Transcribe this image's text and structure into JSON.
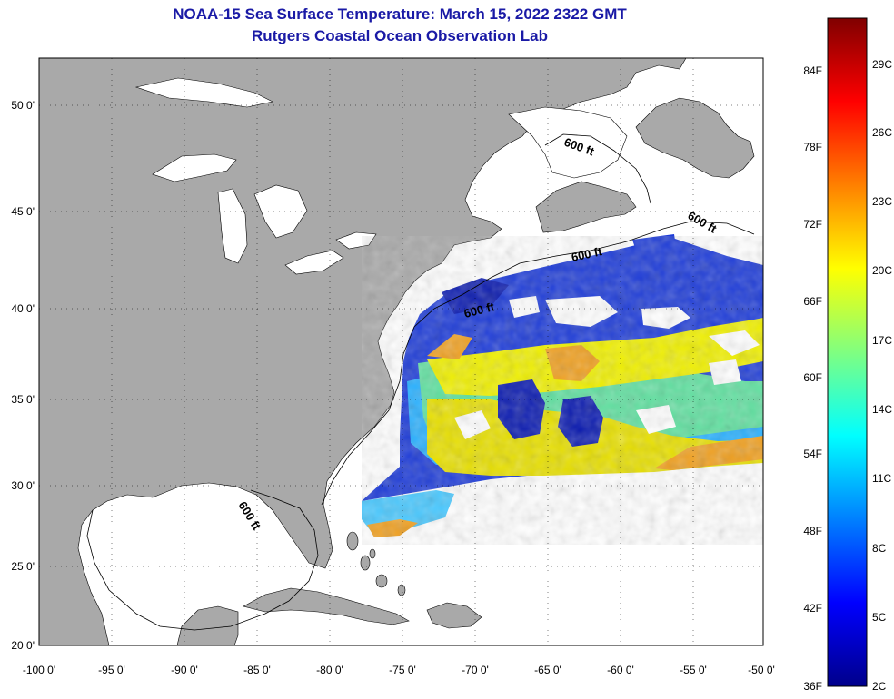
{
  "title": "NOAA-15 Sea Surface Temperature:  March 15, 2022 2322 GMT",
  "subtitle": "Rutgers Coastal Ocean Observation Lab",
  "map": {
    "lon_range": [
      -100,
      -50
    ],
    "lat_range": [
      20,
      52.5
    ],
    "lon_ticks": [
      "-100 0'",
      "-95 0'",
      "-90 0'",
      "-85 0'",
      "-80 0'",
      "-75 0'",
      "-70 0'",
      "-65 0'",
      "-60 0'",
      "-55 0'",
      "-50 0'"
    ],
    "lat_ticks": [
      "20 0'",
      "25 0'",
      "30 0'",
      "35 0'",
      "40 0'",
      "45 0'",
      "50 0'"
    ],
    "isobath_labels": [
      "600 ft",
      "600 ft",
      "600 ft",
      "600 ft",
      "600 ft"
    ],
    "colors": {
      "land": "#a9a9a9",
      "ocean": "#ffffff",
      "grid": "#000000"
    }
  },
  "colorbar": {
    "fahrenheit": [
      "36F",
      "42F",
      "48F",
      "54F",
      "60F",
      "66F",
      "72F",
      "78F",
      "84F"
    ],
    "celsius": [
      "2C",
      "5C",
      "8C",
      "11C",
      "14C",
      "17C",
      "20C",
      "23C",
      "26C",
      "29C"
    ],
    "min_f": 36,
    "max_f": 88,
    "stops": [
      "#00008b",
      "#0000ff",
      "#0080ff",
      "#00ffff",
      "#80ff80",
      "#ffff00",
      "#ff8000",
      "#ff0000",
      "#800000"
    ]
  }
}
